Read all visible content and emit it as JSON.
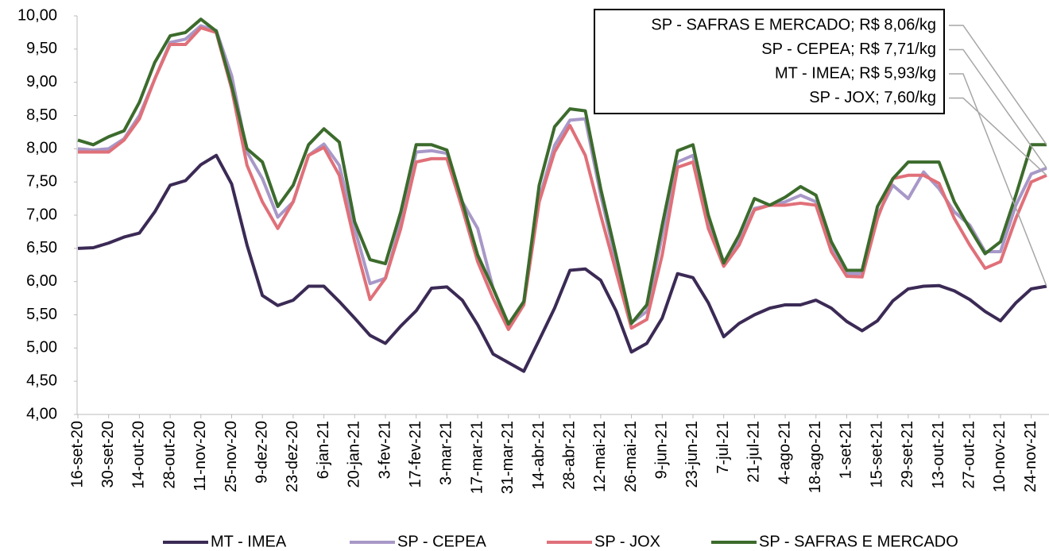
{
  "chart_data": {
    "type": "line",
    "categories": [
      "16-set-20",
      null,
      "30-set-20",
      null,
      "14-out-20",
      null,
      "28-out-20",
      null,
      "11-nov-20",
      null,
      "25-nov-20",
      null,
      "9-dez-20",
      null,
      "23-dez-20",
      null,
      "6-jan-21",
      null,
      "20-jan-21",
      null,
      "3-fev-21",
      null,
      "17-fev-21",
      null,
      "3-mar-21",
      null,
      "17-mar-21",
      null,
      "31-mar-21",
      null,
      "14-abr-21",
      null,
      "28-abr-21",
      null,
      "12-mai-21",
      null,
      "26-mai-21",
      null,
      "9-jun-21",
      null,
      "23-jun-21",
      null,
      "7-jul-21",
      null,
      "21-jul-21",
      null,
      "4-ago-21",
      null,
      "18-ago-21",
      null,
      "1-set-21",
      null,
      "15-set-21",
      null,
      "29-set-21",
      null,
      "13-out-21",
      null,
      "27-out-21",
      null,
      "10-nov-21",
      null,
      "24-nov-21",
      null
    ],
    "ylim": [
      4,
      10
    ],
    "yticks": [
      {
        "value": 4,
        "label": "4,00"
      },
      {
        "value": 4.5,
        "label": "4,50"
      },
      {
        "value": 5,
        "label": "5,00"
      },
      {
        "value": 5.5,
        "label": "5,50"
      },
      {
        "value": 6,
        "label": "6,00"
      },
      {
        "value": 6.5,
        "label": "6,50"
      },
      {
        "value": 7,
        "label": "7,00"
      },
      {
        "value": 7.5,
        "label": "7,50"
      },
      {
        "value": 8,
        "label": "8,00"
      },
      {
        "value": 8.5,
        "label": "8,50"
      },
      {
        "value": 9,
        "label": "9,00"
      },
      {
        "value": 9.5,
        "label": "9,50"
      },
      {
        "value": 10,
        "label": "10,00"
      }
    ],
    "grid": false,
    "legend": "bottom",
    "series": [
      {
        "name": "MT - IMEA",
        "color": "#3b2a55",
        "values": [
          6.5,
          6.51,
          6.58,
          6.67,
          6.73,
          7.05,
          7.45,
          7.52,
          7.76,
          7.9,
          7.47,
          6.55,
          5.79,
          5.64,
          5.72,
          5.93,
          5.93,
          5.7,
          5.45,
          5.19,
          5.07,
          5.33,
          5.56,
          5.9,
          5.92,
          5.72,
          5.35,
          4.91,
          4.78,
          4.65,
          5.12,
          5.6,
          6.17,
          6.19,
          6.02,
          5.56,
          4.94,
          5.07,
          5.45,
          6.12,
          6.06,
          5.68,
          5.17,
          5.37,
          5.5,
          5.6,
          5.65,
          5.65,
          5.72,
          5.6,
          5.4,
          5.26,
          5.41,
          5.71,
          5.89,
          5.93,
          5.94,
          5.86,
          5.73,
          5.55,
          5.41,
          5.68,
          5.89,
          5.93
        ]
      },
      {
        "name": "SP - CEPEA",
        "color": "#a898c8",
        "values": [
          8.0,
          7.98,
          8.0,
          8.15,
          8.5,
          9.05,
          9.6,
          9.65,
          9.85,
          9.78,
          9.1,
          7.95,
          7.55,
          6.97,
          7.2,
          7.9,
          8.07,
          7.75,
          6.8,
          5.97,
          6.05,
          6.9,
          7.95,
          7.97,
          7.93,
          7.2,
          6.8,
          5.9,
          5.35,
          5.7,
          7.25,
          8.05,
          8.43,
          8.45,
          7.3,
          6.3,
          5.38,
          5.55,
          6.7,
          7.8,
          7.9,
          6.9,
          6.3,
          6.6,
          7.1,
          7.15,
          7.2,
          7.3,
          7.2,
          6.5,
          6.12,
          6.12,
          7.0,
          7.45,
          7.25,
          7.65,
          7.4,
          7.05,
          6.85,
          6.45,
          6.45,
          7.15,
          7.62,
          7.71
        ]
      },
      {
        "name": "SP - JOX",
        "color": "#e07079",
        "values": [
          7.95,
          7.95,
          7.95,
          8.13,
          8.45,
          9.05,
          9.57,
          9.57,
          9.82,
          9.75,
          8.9,
          7.75,
          7.2,
          6.8,
          7.2,
          7.9,
          8.02,
          7.6,
          6.6,
          5.73,
          6.05,
          6.8,
          7.8,
          7.85,
          7.85,
          7.1,
          6.3,
          5.75,
          5.28,
          5.65,
          7.2,
          7.95,
          8.35,
          7.9,
          7.0,
          6.15,
          5.3,
          5.43,
          6.4,
          7.72,
          7.8,
          6.8,
          6.23,
          6.55,
          7.08,
          7.15,
          7.15,
          7.18,
          7.15,
          6.45,
          6.08,
          6.07,
          6.95,
          7.55,
          7.6,
          7.6,
          7.48,
          6.95,
          6.55,
          6.2,
          6.3,
          6.95,
          7.5,
          7.6
        ]
      },
      {
        "name": "SP - SAFRAS E MERCADO",
        "color": "#3c6b2c",
        "values": [
          8.13,
          8.06,
          8.18,
          8.27,
          8.7,
          9.3,
          9.7,
          9.75,
          9.95,
          9.77,
          8.95,
          8.0,
          7.8,
          7.13,
          7.45,
          8.06,
          8.3,
          8.1,
          6.9,
          6.33,
          6.27,
          7.05,
          8.06,
          8.06,
          7.98,
          7.2,
          6.4,
          5.9,
          5.36,
          5.7,
          7.45,
          8.33,
          8.6,
          8.57,
          7.4,
          6.4,
          5.37,
          5.65,
          6.85,
          7.97,
          8.06,
          7.0,
          6.28,
          6.7,
          7.25,
          7.15,
          7.27,
          7.43,
          7.3,
          6.6,
          6.17,
          6.17,
          7.13,
          7.55,
          7.8,
          7.8,
          7.8,
          7.2,
          6.8,
          6.42,
          6.6,
          7.3,
          8.06,
          8.06
        ]
      }
    ],
    "annotations": [
      {
        "text": "SP - SAFRAS E MERCADO; R$ 8,06/kg",
        "series": 3
      },
      {
        "text": "SP - CEPEA; R$ 7,71/kg",
        "series": 1
      },
      {
        "text": "MT - IMEA; R$ 5,93/kg",
        "series": 0
      },
      {
        "text": "SP - JOX; 7,60/kg",
        "series": 2
      }
    ]
  }
}
